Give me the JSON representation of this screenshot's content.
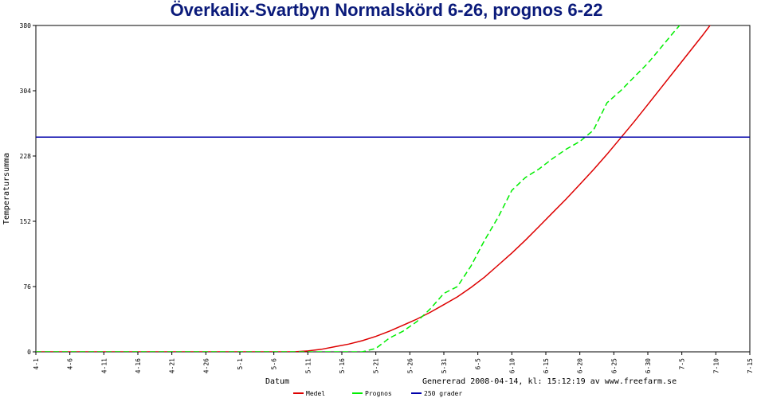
{
  "chart_data": {
    "type": "line",
    "title": "Överkalix-Svartbyn Normalskörd 6-26, prognos 6-22",
    "xlabel": "Datum",
    "ylabel": "Temperatursumma",
    "footer": "Genererad 2008-04-14, kl: 15:12:19 av www.freefarm.se",
    "ylim": [
      0,
      380
    ],
    "yticks": [
      0,
      76,
      152,
      228,
      304,
      380
    ],
    "x_start": "4-1",
    "xlim_days": [
      0,
      105
    ],
    "xticks": [
      {
        "day": 0,
        "label": "4-1"
      },
      {
        "day": 5,
        "label": "4-6"
      },
      {
        "day": 10,
        "label": "4-11"
      },
      {
        "day": 15,
        "label": "4-16"
      },
      {
        "day": 20,
        "label": "4-21"
      },
      {
        "day": 25,
        "label": "4-26"
      },
      {
        "day": 30,
        "label": "5-1"
      },
      {
        "day": 35,
        "label": "5-6"
      },
      {
        "day": 40,
        "label": "5-11"
      },
      {
        "day": 45,
        "label": "5-16"
      },
      {
        "day": 50,
        "label": "5-21"
      },
      {
        "day": 55,
        "label": "5-26"
      },
      {
        "day": 60,
        "label": "5-31"
      },
      {
        "day": 65,
        "label": "6-5"
      },
      {
        "day": 70,
        "label": "6-10"
      },
      {
        "day": 75,
        "label": "6-15"
      },
      {
        "day": 80,
        "label": "6-20"
      },
      {
        "day": 85,
        "label": "6-25"
      },
      {
        "day": 90,
        "label": "6-30"
      },
      {
        "day": 95,
        "label": "7-5"
      },
      {
        "day": 100,
        "label": "7-10"
      },
      {
        "day": 105,
        "label": "7-15"
      }
    ],
    "series": [
      {
        "name": "Medel",
        "color": "#dd0000",
        "style": "solid",
        "points": [
          [
            0,
            0
          ],
          [
            38,
            0
          ],
          [
            40,
            1
          ],
          [
            42,
            3
          ],
          [
            44,
            6
          ],
          [
            46,
            9
          ],
          [
            48,
            13
          ],
          [
            50,
            18
          ],
          [
            52,
            24
          ],
          [
            54,
            31
          ],
          [
            56,
            38
          ],
          [
            58,
            46
          ],
          [
            60,
            55
          ],
          [
            62,
            64
          ],
          [
            64,
            75
          ],
          [
            66,
            87
          ],
          [
            68,
            101
          ],
          [
            70,
            115
          ],
          [
            72,
            130
          ],
          [
            74,
            146
          ],
          [
            76,
            162
          ],
          [
            78,
            178
          ],
          [
            80,
            195
          ],
          [
            82,
            212
          ],
          [
            84,
            230
          ],
          [
            86,
            249
          ],
          [
            88,
            268
          ],
          [
            90,
            288
          ],
          [
            92,
            308
          ],
          [
            94,
            328
          ],
          [
            96,
            348
          ],
          [
            98,
            368
          ],
          [
            100,
            389
          ],
          [
            102,
            410
          ]
        ]
      },
      {
        "name": "Prognos",
        "color": "#00ee00",
        "style": "dashed",
        "points": [
          [
            0,
            0
          ],
          [
            48,
            0
          ],
          [
            50,
            4
          ],
          [
            52,
            16
          ],
          [
            54,
            24
          ],
          [
            56,
            35
          ],
          [
            58,
            50
          ],
          [
            60,
            68
          ],
          [
            62,
            76
          ],
          [
            64,
            100
          ],
          [
            66,
            130
          ],
          [
            68,
            157
          ],
          [
            70,
            188
          ],
          [
            72,
            203
          ],
          [
            74,
            213
          ],
          [
            76,
            225
          ],
          [
            78,
            236
          ],
          [
            80,
            245
          ],
          [
            82,
            258
          ],
          [
            84,
            290
          ],
          [
            86,
            304
          ],
          [
            88,
            320
          ],
          [
            90,
            336
          ],
          [
            92,
            355
          ],
          [
            94,
            374
          ],
          [
            96,
            392
          ],
          [
            98,
            410
          ]
        ]
      },
      {
        "name": "250 grader",
        "color": "#0000aa",
        "style": "solid",
        "points": [
          [
            0,
            250
          ],
          [
            105,
            250
          ]
        ]
      }
    ]
  }
}
